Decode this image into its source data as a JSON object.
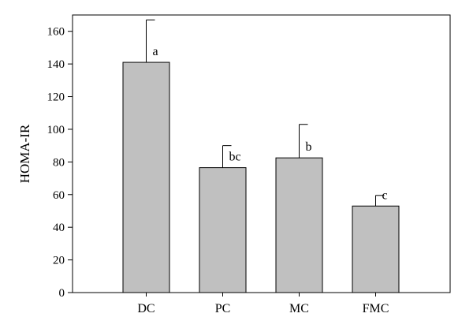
{
  "chart_data": {
    "type": "bar",
    "categories": [
      "DC",
      "PC",
      "MC",
      "FMC"
    ],
    "values": [
      141,
      76.5,
      82.5,
      53
    ],
    "errors": [
      26,
      13.5,
      20.5,
      6.5
    ],
    "significance_labels": [
      "a",
      "bc",
      "b",
      "c"
    ],
    "ylabel": "HOMA-IR",
    "xlabel": "",
    "ylim": [
      0,
      170
    ],
    "yticks": [
      0,
      20,
      40,
      60,
      80,
      100,
      120,
      140,
      160
    ],
    "grid": false,
    "bar_color": "#c0c0c0",
    "edge_color": "#000000"
  }
}
